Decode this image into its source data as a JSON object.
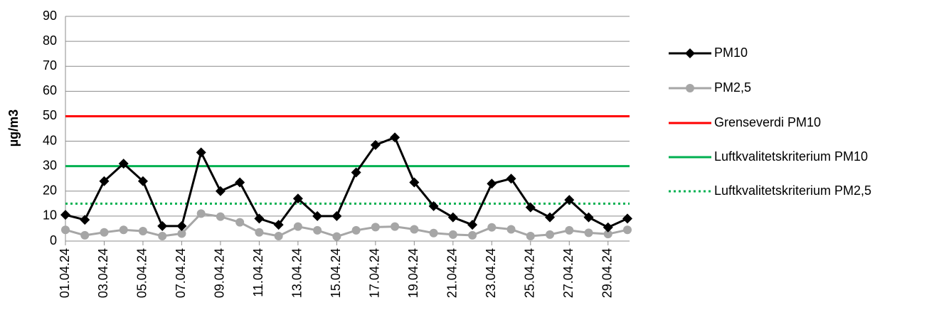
{
  "chart_data": {
    "type": "line",
    "y_label": "µg/m3",
    "categories": [
      "01.04.24",
      null,
      "03.04.24",
      null,
      "05.04.24",
      null,
      "07.04.24",
      null,
      "09.04.24",
      null,
      "11.04.24",
      null,
      "13.04.24",
      null,
      "15.04.24",
      null,
      "17.04.24",
      null,
      "19.04.24",
      null,
      "21.04.24",
      null,
      "23.04.24",
      null,
      "25.04.24",
      null,
      "27.04.24",
      null,
      "29.04.24",
      null
    ],
    "series": [
      {
        "name": "PM10",
        "color": "#000000",
        "marker": "diamond",
        "values": [
          10.5,
          8.5,
          24,
          31,
          24,
          6,
          6,
          35.5,
          20,
          23.5,
          9,
          6.5,
          17,
          10,
          10,
          27.5,
          38.5,
          41.5,
          23.5,
          14,
          9.5,
          6.5,
          23,
          25,
          13.5,
          9.5,
          16.5,
          9.5,
          5.5,
          9
        ]
      },
      {
        "name": "PM2,5",
        "color": "#a6a6a6",
        "marker": "circle",
        "values": [
          4.5,
          2.3,
          3.5,
          4.5,
          4,
          2,
          3,
          11,
          9.8,
          7.5,
          3.5,
          2,
          5.8,
          4.3,
          1.8,
          4.3,
          5.6,
          5.8,
          4.7,
          3.2,
          2.6,
          2.3,
          5.5,
          4.7,
          2,
          2.6,
          4.3,
          3.3,
          2.8,
          4.5
        ]
      }
    ],
    "reference_lines": [
      {
        "name": "Grenseverdi PM10",
        "value": 50,
        "color": "#ff0000",
        "style": "solid"
      },
      {
        "name": "Luftkvalitetskriterium PM10",
        "value": 30,
        "color": "#00b050",
        "style": "solid"
      },
      {
        "name": "Luftkvalitetskriterium PM2,5",
        "value": 15,
        "color": "#00b050",
        "style": "dotted"
      }
    ],
    "ylim": [
      0,
      90
    ],
    "yticks": [
      0,
      10,
      20,
      30,
      40,
      50,
      60,
      70,
      80,
      90
    ],
    "grid": true,
    "legend": "right"
  }
}
